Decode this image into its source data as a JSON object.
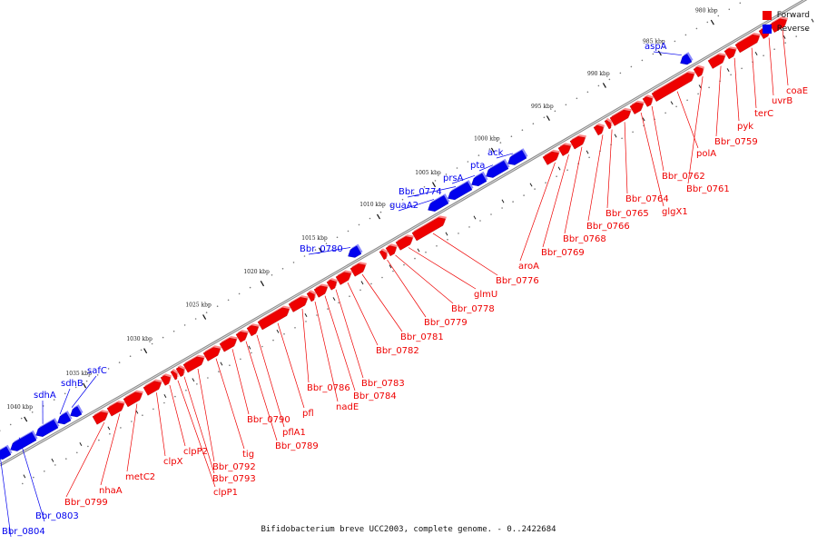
{
  "caption": "Bifidobacterium breve UCC2003, complete genome. - 0..2422684",
  "colors": {
    "forward": "#ee0000",
    "reverse": "#0000ee",
    "backbone": "#8a8a8a"
  },
  "legend": [
    {
      "label": "Forward",
      "color": "#ee0000"
    },
    {
      "label": "Reverse",
      "color": "#0000ee"
    }
  ],
  "ticks": [
    "980 kbp",
    "985 kbp",
    "990 kbp",
    "995 kbp",
    "1000 kbp",
    "1005 kbp",
    "1010 kbp",
    "1015 kbp",
    "1020 kbp",
    "1025 kbp",
    "1030 kbp",
    "1035 kbp",
    "1040 kbp"
  ],
  "genes_forward": [
    "coaE",
    "uvrB",
    "terC",
    "pyk",
    "Bbr_0759",
    "polA",
    "Bbr_0761",
    "Bbr_0762",
    "glgX1",
    "Bbr_0764",
    "Bbr_0765",
    "Bbr_0766",
    "Bbr_0768",
    "Bbr_0769",
    "aroA",
    "Bbr_0776",
    "glmU",
    "Bbr_0778",
    "Bbr_0779",
    "Bbr_0781",
    "Bbr_0782",
    "Bbr_0783",
    "Bbr_0784",
    "nadE",
    "Bbr_0786",
    "pfl",
    "pflA1",
    "Bbr_0789",
    "Bbr_0790",
    "tig",
    "Bbr_0792",
    "Bbr_0793",
    "clpP1",
    "clpP2",
    "clpX",
    "metC2",
    "nhaA",
    "Bbr_0799"
  ],
  "genes_reverse": [
    "aspA",
    "ack",
    "pta",
    "prsA",
    "Bbr_0774",
    "guaA2",
    "Bbr_0780",
    "safC",
    "sdhB",
    "sdhA",
    "Bbr_0803",
    "Bbr_0804"
  ]
}
